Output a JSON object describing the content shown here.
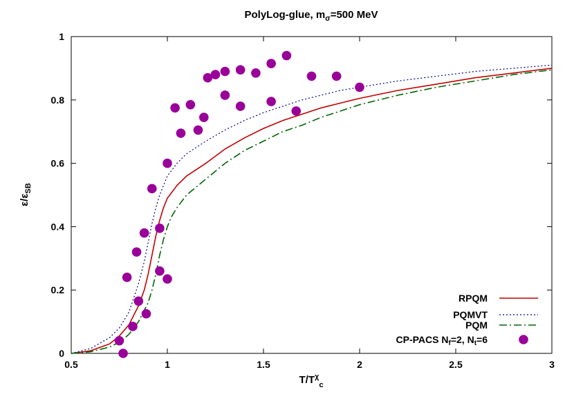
{
  "chart_data": {
    "type": "line",
    "title": "PolyLog-glue, m",
    "title_sub": "σ",
    "title_tail": "=500 MeV",
    "xlabel": "T/T",
    "xlabel_sup": "χ",
    "xlabel_sub": "c",
    "ylabel": "ε/ε",
    "ylabel_sub": "SB",
    "xlim": [
      0.5,
      3
    ],
    "ylim": [
      0,
      1
    ],
    "x_ticks": [
      "0.5",
      "1",
      "1.5",
      "2",
      "2.5",
      "3"
    ],
    "y_ticks": [
      "0",
      "0.2",
      "0.4",
      "0.6",
      "0.8",
      "1"
    ],
    "legend_position": "bottom-right",
    "series": [
      {
        "name": "RPQM",
        "style": "solid",
        "color": "#c00000",
        "x": [
          0.5,
          0.6,
          0.7,
          0.75,
          0.8,
          0.85,
          0.88,
          0.9,
          0.92,
          0.94,
          0.96,
          0.98,
          1.0,
          1.05,
          1.1,
          1.2,
          1.3,
          1.4,
          1.5,
          1.6,
          1.7,
          1.8,
          1.9,
          2.0,
          2.2,
          2.4,
          2.6,
          2.8,
          3.0
        ],
        "y": [
          0.0,
          0.008,
          0.03,
          0.055,
          0.09,
          0.15,
          0.2,
          0.25,
          0.31,
          0.37,
          0.42,
          0.46,
          0.49,
          0.53,
          0.56,
          0.6,
          0.645,
          0.68,
          0.71,
          0.735,
          0.755,
          0.775,
          0.79,
          0.805,
          0.83,
          0.85,
          0.87,
          0.885,
          0.9
        ]
      },
      {
        "name": "PQMVT",
        "style": "dotted",
        "color": "#00008b",
        "x": [
          0.5,
          0.6,
          0.7,
          0.75,
          0.8,
          0.85,
          0.88,
          0.9,
          0.92,
          0.94,
          0.96,
          0.98,
          1.0,
          1.05,
          1.1,
          1.2,
          1.3,
          1.4,
          1.5,
          1.6,
          1.7,
          1.8,
          1.9,
          2.0,
          2.2,
          2.4,
          2.6,
          2.8,
          3.0
        ],
        "y": [
          0.0,
          0.015,
          0.05,
          0.08,
          0.13,
          0.22,
          0.29,
          0.35,
          0.41,
          0.46,
          0.5,
          0.53,
          0.56,
          0.6,
          0.63,
          0.67,
          0.705,
          0.735,
          0.76,
          0.78,
          0.8,
          0.815,
          0.83,
          0.84,
          0.86,
          0.875,
          0.89,
          0.9,
          0.91
        ]
      },
      {
        "name": "PQM",
        "style": "dash-dot",
        "color": "#006400",
        "x": [
          0.5,
          0.6,
          0.7,
          0.75,
          0.8,
          0.85,
          0.9,
          0.92,
          0.94,
          0.96,
          0.98,
          1.0,
          1.02,
          1.05,
          1.1,
          1.2,
          1.3,
          1.4,
          1.5,
          1.6,
          1.7,
          1.8,
          1.9,
          2.0,
          2.2,
          2.4,
          2.6,
          2.8,
          3.0
        ],
        "y": [
          0.0,
          0.005,
          0.02,
          0.035,
          0.06,
          0.1,
          0.16,
          0.2,
          0.25,
          0.31,
          0.36,
          0.4,
          0.43,
          0.46,
          0.5,
          0.55,
          0.6,
          0.64,
          0.67,
          0.7,
          0.72,
          0.745,
          0.765,
          0.785,
          0.815,
          0.84,
          0.86,
          0.88,
          0.895
        ]
      },
      {
        "name": "CP-PACS N",
        "name_sub1": "f",
        "name_mid": "=2, N",
        "name_sub2": "t",
        "name_tail": "=6",
        "style": "points",
        "color": "#990099",
        "x": [
          0.75,
          0.77,
          0.79,
          0.82,
          0.84,
          0.85,
          0.88,
          0.89,
          0.92,
          0.96,
          0.96,
          1.0,
          1.0,
          1.04,
          1.07,
          1.12,
          1.16,
          1.19,
          1.21,
          1.25,
          1.3,
          1.3,
          1.38,
          1.38,
          1.46,
          1.54,
          1.54,
          1.62,
          1.67,
          1.75,
          1.88,
          2.0
        ],
        "y": [
          0.04,
          0.0,
          0.24,
          0.085,
          0.32,
          0.165,
          0.38,
          0.125,
          0.52,
          0.395,
          0.26,
          0.6,
          0.235,
          0.775,
          0.695,
          0.785,
          0.705,
          0.745,
          0.87,
          0.88,
          0.815,
          0.89,
          0.895,
          0.78,
          0.885,
          0.795,
          0.915,
          0.94,
          0.765,
          0.875,
          0.875,
          0.84
        ]
      }
    ]
  }
}
